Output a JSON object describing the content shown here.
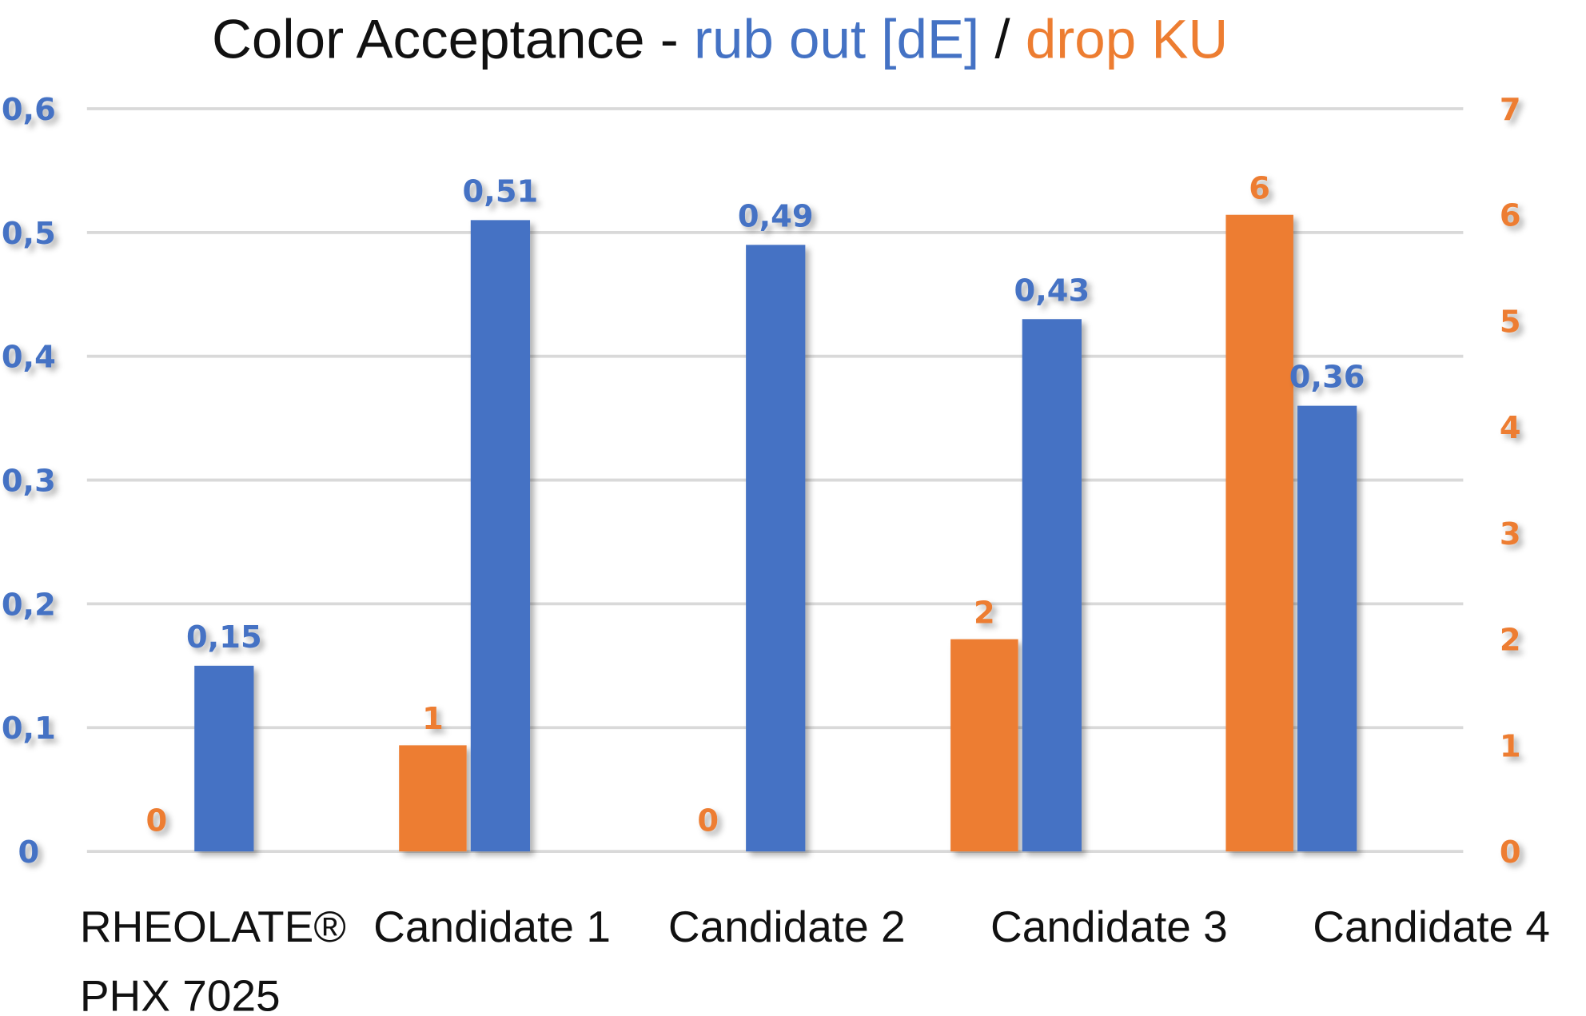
{
  "chart_data": {
    "type": "bar",
    "title_parts": {
      "main": "Color Acceptance - ",
      "series_blue": "rub out [dE]",
      "sep": " / ",
      "series_orange": "drop KU"
    },
    "categories": [
      [
        "RHEOLATE®",
        "PHX 7025"
      ],
      [
        "Candidate 1"
      ],
      [
        "Candidate 2"
      ],
      [
        "Candidate  3"
      ],
      [
        "Candidate 4"
      ]
    ],
    "series": [
      {
        "name": "drop KU",
        "axis": "right",
        "color": "#ED7D31",
        "values": [
          0,
          1,
          0,
          2,
          6
        ],
        "labels": [
          "0",
          "1",
          "0",
          "2",
          "6"
        ]
      },
      {
        "name": "rub out [dE]",
        "axis": "left",
        "color": "#4472C4",
        "values": [
          0.15,
          0.51,
          0.49,
          0.43,
          0.36
        ],
        "labels": [
          "0,15",
          "0,51",
          "0,49",
          "0,43",
          "0,36"
        ]
      }
    ],
    "left_axis": {
      "ylim": [
        0,
        0.6
      ],
      "ticks": [
        "0",
        "0,1",
        "0,2",
        "0,3",
        "0,4",
        "0,5",
        "0,6"
      ],
      "color": "#4472C4"
    },
    "right_axis": {
      "ylim": [
        0,
        7
      ],
      "ticks": [
        "0",
        "1",
        "2",
        "3",
        "4",
        "5",
        "6",
        "7"
      ],
      "color": "#ED7D31"
    },
    "grid": true,
    "legend": "none"
  }
}
